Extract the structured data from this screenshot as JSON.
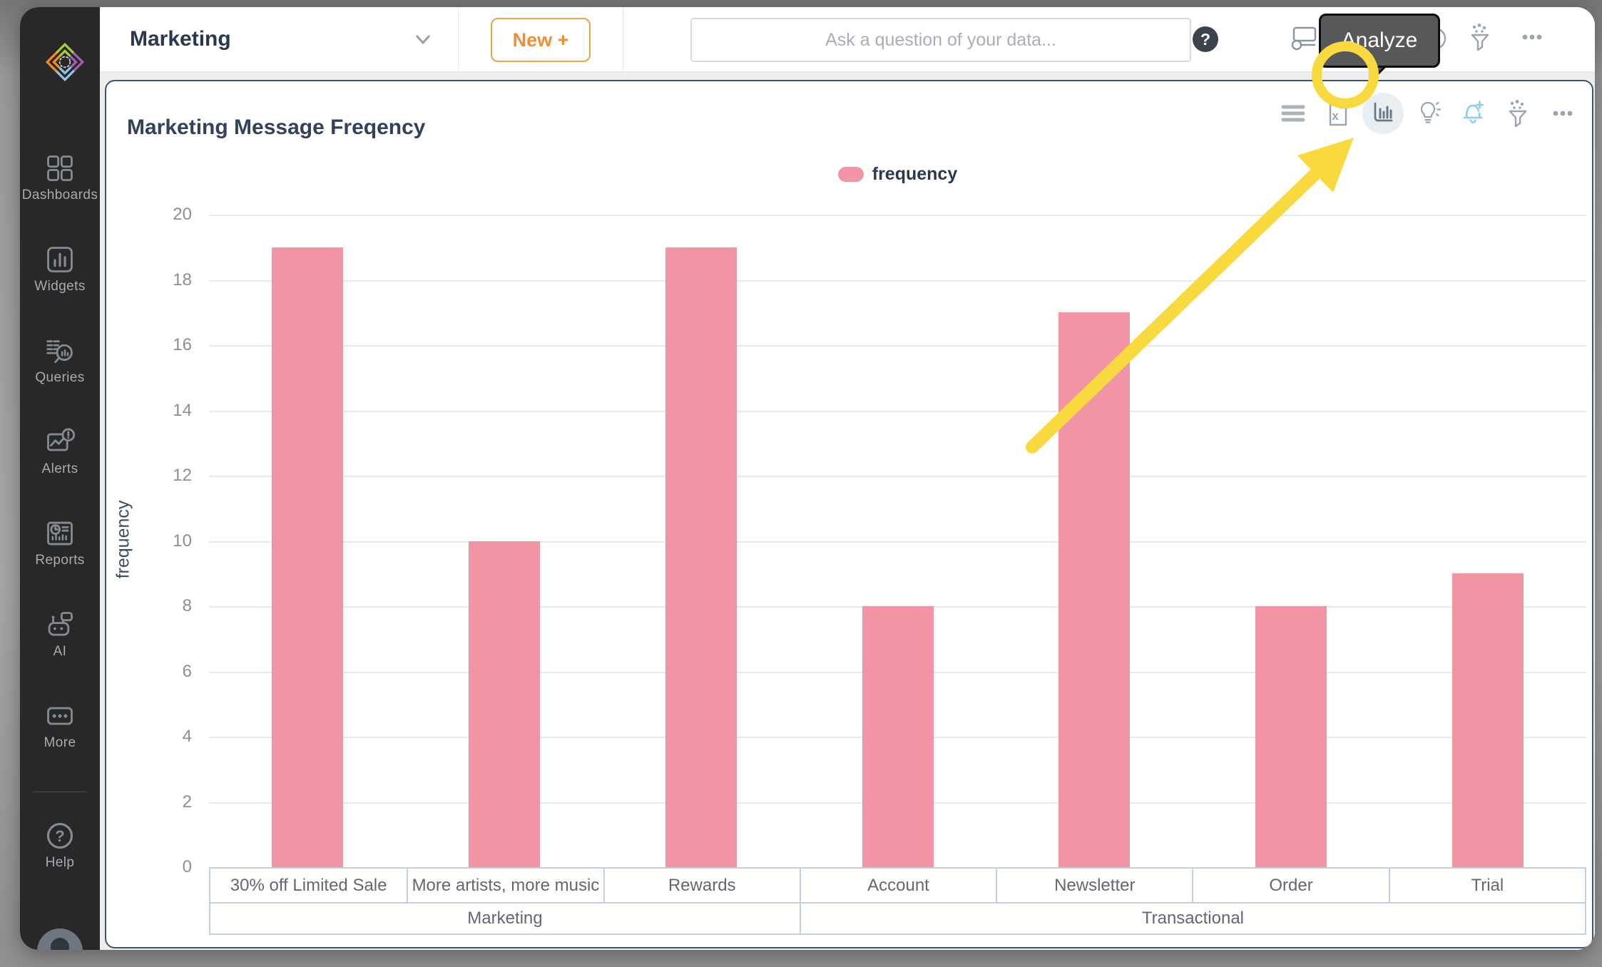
{
  "app": {
    "logo_icon": "sisense-logo"
  },
  "sidebar": {
    "items": [
      {
        "id": "dashboards",
        "icon": "dashboards-icon",
        "label": "Dashboards"
      },
      {
        "id": "widgets",
        "icon": "widgets-icon",
        "label": "Widgets"
      },
      {
        "id": "queries",
        "icon": "queries-icon",
        "label": "Queries"
      },
      {
        "id": "alerts",
        "icon": "alerts-icon",
        "label": "Alerts"
      },
      {
        "id": "reports",
        "icon": "reports-icon",
        "label": "Reports"
      },
      {
        "id": "ai",
        "icon": "ai-icon",
        "label": "AI"
      },
      {
        "id": "more",
        "icon": "more-icon",
        "label": "More"
      }
    ],
    "help": {
      "id": "help",
      "icon": "help-icon",
      "label": "Help"
    }
  },
  "topbar": {
    "dashboard_selector": "Marketing",
    "new_button": "New +",
    "search_placeholder": "Ask a question of your data...",
    "help_glyph": "?",
    "analyze_tooltip": "Analyze"
  },
  "widget": {
    "title": "Marketing Message Freqency",
    "toolbar_icons": [
      "hamburger-icon",
      "export-excel-icon",
      "bar-chart-icon",
      "lightbulb-icon",
      "add-alert-icon",
      "filter-icon",
      "more-icon"
    ]
  },
  "chart_data": {
    "type": "bar",
    "title": "Marketing Message Freqency",
    "categories": [
      "30% off Limited Sale",
      "More artists, more music",
      "Rewards",
      "Account",
      "Newsletter",
      "Order",
      "Trial"
    ],
    "category_groups": [
      {
        "label": "Marketing",
        "span": 3
      },
      {
        "label": "Transactional",
        "span": 4
      }
    ],
    "series": [
      {
        "name": "frequency",
        "values": [
          19,
          10,
          19,
          8,
          17,
          8,
          9
        ]
      }
    ],
    "legend": {
      "label": "frequency",
      "position": "top"
    },
    "xlabel": "",
    "ylabel": "frequency",
    "ylim": [
      0,
      20
    ],
    "ytick_step": 2,
    "grid": true,
    "bar_color": "#f195a4"
  },
  "colors": {
    "bar_pink": "#f195a4",
    "annotation_yellow": "#f8d93e",
    "accent_orange": "#ef8f35",
    "alert_blue": "#8ccdf2",
    "navy_text": "#33415c",
    "sidebar_bg": "#282829",
    "card_border": "#41526b"
  }
}
